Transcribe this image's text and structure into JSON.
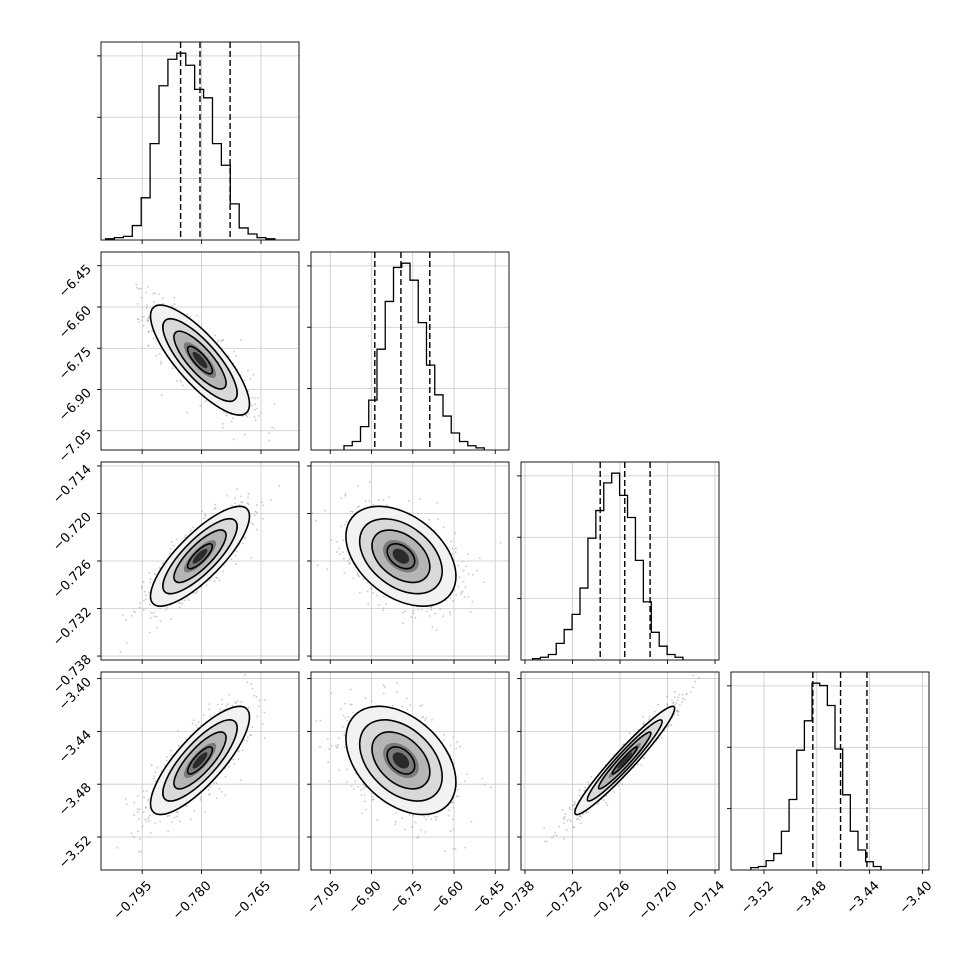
{
  "chart_data": {
    "type": "corner",
    "parameters": [
      "",
      "",
      "",
      ""
    ],
    "ranges": [
      [
        -0.8054,
        -0.7554
      ],
      [
        -7.12,
        -6.4
      ],
      [
        -0.7385,
        -0.7135
      ],
      [
        -3.545,
        -3.395
      ]
    ],
    "ticks": [
      [
        -0.795,
        -0.78,
        -0.765
      ],
      [
        -7.05,
        -6.9,
        -6.75,
        -6.6,
        -6.45
      ],
      [
        -0.738,
        -0.732,
        -0.726,
        -0.72,
        -0.714
      ],
      [
        -3.52,
        -3.48,
        -3.44,
        -3.4
      ]
    ],
    "tick_labels": [
      [
        "−0.795",
        "−0.780",
        "−0.765"
      ],
      [
        "−7.05",
        "−6.90",
        "−6.75",
        "−6.60",
        "−6.45"
      ],
      [
        "−0.738",
        "−0.732",
        "−0.726",
        "−0.720",
        "−0.714"
      ],
      [
        "−3.52",
        "−3.48",
        "−3.44",
        "−3.40"
      ]
    ],
    "marginal_quantiles": [
      [
        -0.7853,
        -0.7804,
        -0.7728
      ],
      [
        -6.888,
        -6.793,
        -6.688
      ],
      [
        -0.7285,
        -0.7254,
        -0.7222
      ],
      [
        -3.483,
        -3.462,
        -3.442
      ]
    ],
    "marginal_histograms": [
      {
        "bin_start": -0.80425,
        "bin_width": 0.00225,
        "counts": [
          1,
          2,
          3,
          12,
          35,
          80,
          128,
          150,
          155,
          145,
          125,
          118,
          80,
          62,
          30,
          10,
          5,
          2,
          1
        ]
      },
      {
        "bin_start": -7.0,
        "bin_width": 0.03,
        "counts": [
          4,
          8,
          22,
          47,
          95,
          140,
          172,
          176,
          160,
          120,
          80,
          52,
          32,
          16,
          8,
          4,
          2
        ]
      },
      {
        "bin_start": -0.73705,
        "bin_width": 0.001,
        "counts": [
          1,
          2,
          4,
          12,
          22,
          33,
          52,
          88,
          108,
          128,
          135,
          119,
          103,
          72,
          42,
          20,
          10,
          4,
          2
        ]
      },
      {
        "bin_start": -3.53,
        "bin_width": 0.0058,
        "counts": [
          2,
          3,
          8,
          14,
          33,
          60,
          102,
          127,
          159,
          157,
          140,
          103,
          64,
          33,
          17,
          7,
          3
        ]
      }
    ],
    "joint_distributions": [
      {
        "x_param": 0,
        "y_param": 1,
        "correlation": -0.8
      },
      {
        "x_param": 0,
        "y_param": 2,
        "correlation": 0.8
      },
      {
        "x_param": 1,
        "y_param": 2,
        "correlation": -0.4
      },
      {
        "x_param": 0,
        "y_param": 3,
        "correlation": 0.8
      },
      {
        "x_param": 1,
        "y_param": 3,
        "correlation": -0.4
      },
      {
        "x_param": 2,
        "y_param": 3,
        "correlation": 0.96
      }
    ],
    "grid": true
  }
}
